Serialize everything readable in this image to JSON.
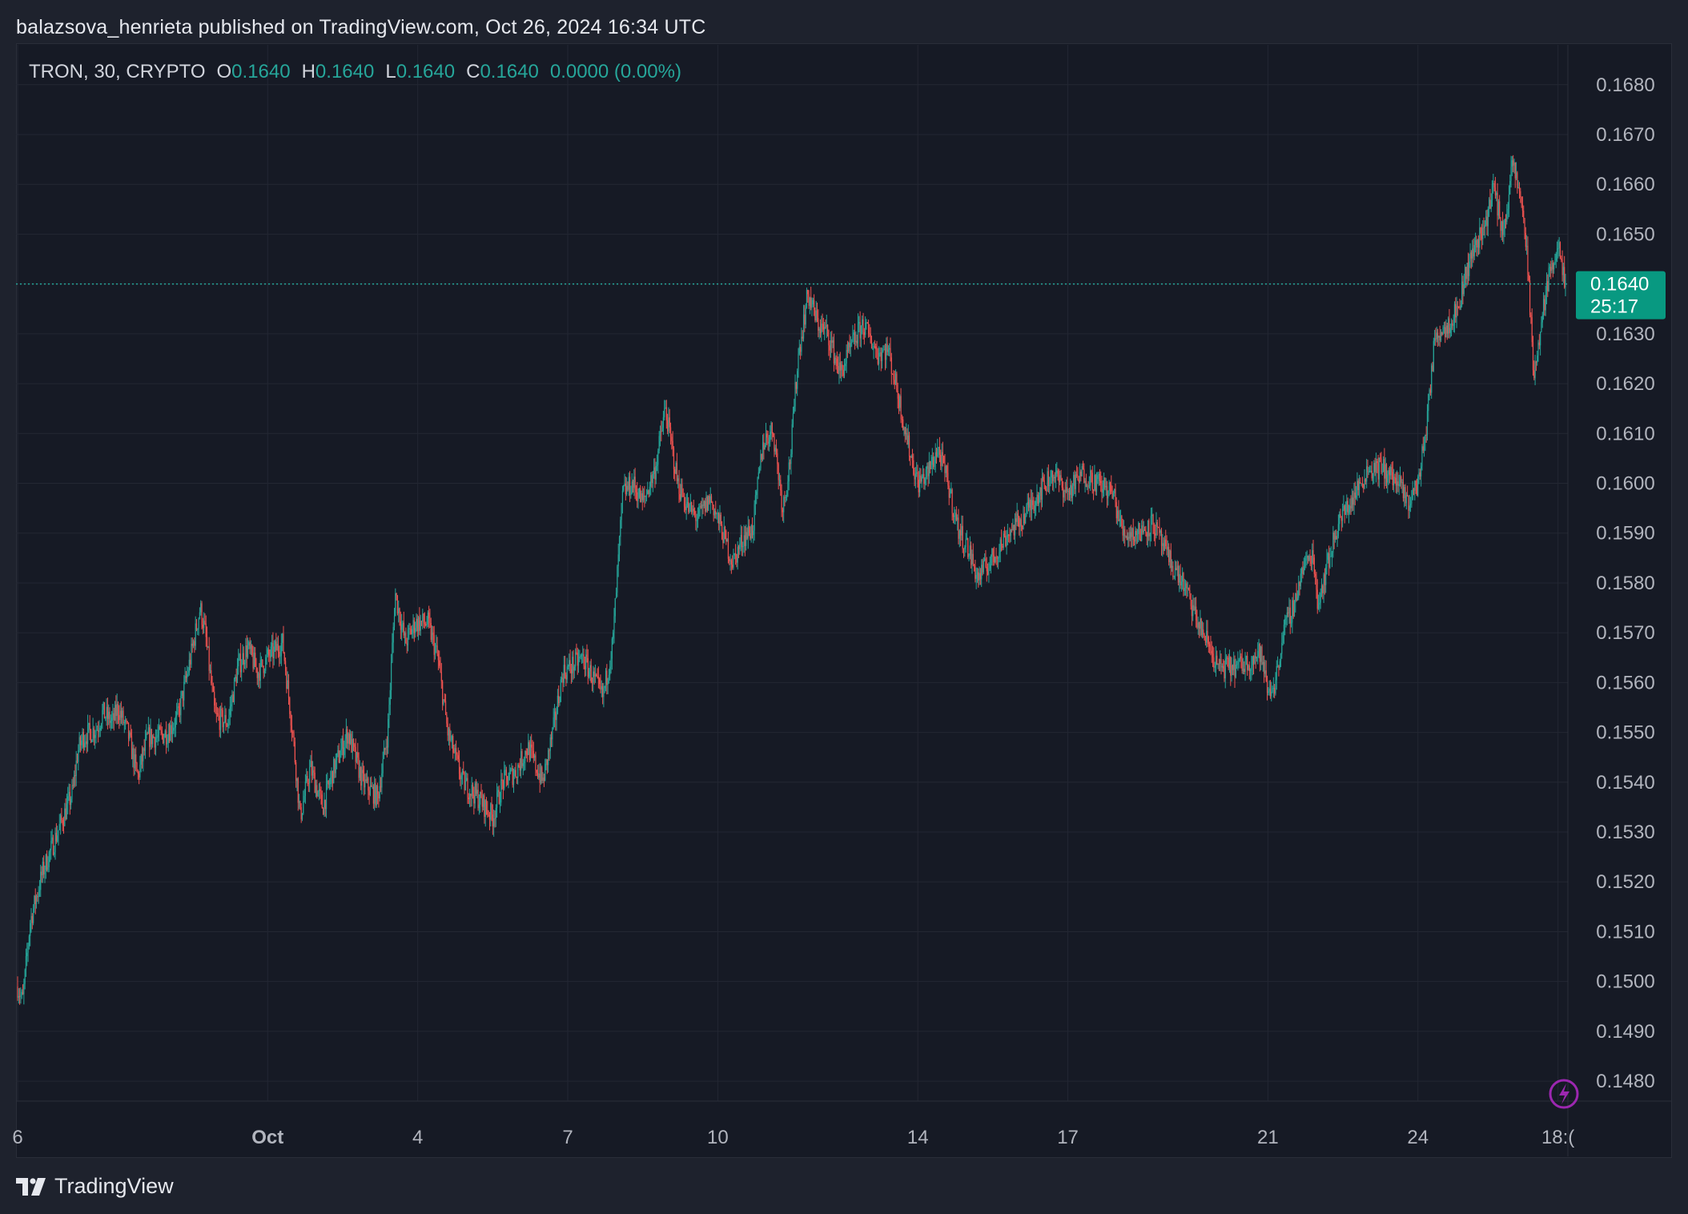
{
  "publish_line": "balazsova_henrieta published on TradingView.com, Oct 26, 2024 16:34 UTC",
  "legend": {
    "symbol": "TRON, 30, CRYPTO",
    "o_label": "O",
    "o_value": "0.1640",
    "h_label": "H",
    "h_value": "0.1640",
    "l_label": "L",
    "l_value": "0.1640",
    "c_label": "C",
    "c_value": "0.1640",
    "change": "0.0000 (0.00%)"
  },
  "price_tag": {
    "price": "0.1640",
    "countdown": "25:17"
  },
  "brand": {
    "name": "TradingView",
    "logo_icon": "tradingview-logo-icon"
  },
  "lightning_icon": "lightning-bolt-icon",
  "colors": {
    "up": "#26a69a",
    "down": "#ef5350",
    "background": "#161a25",
    "page": "#1e222d",
    "grid": "#232733",
    "axis_text": "#b2b5be",
    "indicator": "#9c27b0"
  },
  "chart_data": {
    "type": "candlestick",
    "title": "TRON, 30, CRYPTO",
    "interval": "30 minutes",
    "ylim": [
      0.1476,
      0.1688
    ],
    "y_ticks": [
      "0.1680",
      "0.1670",
      "0.1660",
      "0.1650",
      "0.1640",
      "0.1630",
      "0.1620",
      "0.1610",
      "0.1600",
      "0.1590",
      "0.1580",
      "0.1570",
      "0.1560",
      "0.1550",
      "0.1540",
      "0.1530",
      "0.1520",
      "0.1510",
      "0.1500",
      "0.1490",
      "0.1480"
    ],
    "x_ticks": [
      "6",
      "Oct",
      "4",
      "7",
      "10",
      "14",
      "17",
      "21",
      "24",
      "18:("
    ],
    "x_tick_days": [
      0,
      5,
      8,
      11,
      14,
      18,
      21,
      25,
      28,
      30.8
    ],
    "x_range_days": [
      0,
      30.95
    ],
    "last_price": 0.164,
    "grid": true,
    "close_path": [
      [
        0.0,
        0.1499
      ],
      [
        0.1,
        0.1496
      ],
      [
        0.25,
        0.1512
      ],
      [
        0.5,
        0.1522
      ],
      [
        0.8,
        0.153
      ],
      [
        1.1,
        0.1538
      ],
      [
        1.2,
        0.1546
      ],
      [
        1.3,
        0.1549
      ],
      [
        1.6,
        0.1551
      ],
      [
        1.7,
        0.1554
      ],
      [
        1.9,
        0.1552
      ],
      [
        2.0,
        0.1555
      ],
      [
        2.2,
        0.155
      ],
      [
        2.4,
        0.1541
      ],
      [
        2.6,
        0.1549
      ],
      [
        2.8,
        0.1549
      ],
      [
        3.0,
        0.155
      ],
      [
        3.2,
        0.1553
      ],
      [
        3.4,
        0.1562
      ],
      [
        3.65,
        0.1575
      ],
      [
        3.75,
        0.157
      ],
      [
        3.95,
        0.1553
      ],
      [
        4.2,
        0.1552
      ],
      [
        4.4,
        0.1563
      ],
      [
        4.6,
        0.1567
      ],
      [
        4.8,
        0.1562
      ],
      [
        5.0,
        0.1565
      ],
      [
        5.3,
        0.1568
      ],
      [
        5.5,
        0.155
      ],
      [
        5.65,
        0.1533
      ],
      [
        5.85,
        0.1543
      ],
      [
        6.1,
        0.1535
      ],
      [
        6.3,
        0.1542
      ],
      [
        6.6,
        0.155
      ],
      [
        6.9,
        0.154
      ],
      [
        7.2,
        0.1537
      ],
      [
        7.4,
        0.155
      ],
      [
        7.55,
        0.1578
      ],
      [
        7.75,
        0.1568
      ],
      [
        7.95,
        0.1572
      ],
      [
        8.2,
        0.1572
      ],
      [
        8.4,
        0.1565
      ],
      [
        8.6,
        0.155
      ],
      [
        8.9,
        0.154
      ],
      [
        9.2,
        0.1537
      ],
      [
        9.5,
        0.1533
      ],
      [
        9.7,
        0.154
      ],
      [
        9.95,
        0.1542
      ],
      [
        10.2,
        0.1547
      ],
      [
        10.5,
        0.154
      ],
      [
        10.7,
        0.155
      ],
      [
        10.9,
        0.1562
      ],
      [
        11.3,
        0.1565
      ],
      [
        11.7,
        0.1557
      ],
      [
        11.9,
        0.1568
      ],
      [
        12.1,
        0.1598
      ],
      [
        12.3,
        0.16
      ],
      [
        12.5,
        0.1596
      ],
      [
        12.75,
        0.1603
      ],
      [
        12.95,
        0.1615
      ],
      [
        13.2,
        0.16
      ],
      [
        13.4,
        0.1595
      ],
      [
        13.6,
        0.1593
      ],
      [
        13.85,
        0.1597
      ],
      [
        14.1,
        0.159
      ],
      [
        14.3,
        0.1584
      ],
      [
        14.5,
        0.1589
      ],
      [
        14.7,
        0.1591
      ],
      [
        14.9,
        0.1608
      ],
      [
        15.1,
        0.1611
      ],
      [
        15.3,
        0.1595
      ],
      [
        15.45,
        0.1605
      ],
      [
        15.6,
        0.1625
      ],
      [
        15.8,
        0.1638
      ],
      [
        16.0,
        0.1632
      ],
      [
        16.2,
        0.163
      ],
      [
        16.45,
        0.1622
      ],
      [
        16.7,
        0.1628
      ],
      [
        16.9,
        0.1632
      ],
      [
        17.2,
        0.1626
      ],
      [
        17.4,
        0.1627
      ],
      [
        17.6,
        0.1618
      ],
      [
        17.8,
        0.1608
      ],
      [
        18.0,
        0.16
      ],
      [
        18.2,
        0.1602
      ],
      [
        18.4,
        0.1607
      ],
      [
        18.6,
        0.16
      ],
      [
        18.8,
        0.1591
      ],
      [
        19.0,
        0.1587
      ],
      [
        19.2,
        0.1581
      ],
      [
        19.5,
        0.1585
      ],
      [
        19.8,
        0.159
      ],
      [
        20.1,
        0.1593
      ],
      [
        20.4,
        0.1598
      ],
      [
        20.7,
        0.1602
      ],
      [
        21.0,
        0.1598
      ],
      [
        21.3,
        0.1602
      ],
      [
        21.6,
        0.16
      ],
      [
        21.9,
        0.1598
      ],
      [
        22.1,
        0.159
      ],
      [
        22.4,
        0.159
      ],
      [
        22.7,
        0.1592
      ],
      [
        23.0,
        0.1585
      ],
      [
        23.3,
        0.158
      ],
      [
        23.6,
        0.1572
      ],
      [
        23.8,
        0.1568
      ],
      [
        24.0,
        0.1563
      ],
      [
        24.3,
        0.1563
      ],
      [
        24.6,
        0.1564
      ],
      [
        24.85,
        0.1566
      ],
      [
        25.0,
        0.1558
      ],
      [
        25.15,
        0.156
      ],
      [
        25.3,
        0.157
      ],
      [
        25.5,
        0.1575
      ],
      [
        25.7,
        0.1583
      ],
      [
        25.9,
        0.1586
      ],
      [
        26.0,
        0.1576
      ],
      [
        26.15,
        0.1582
      ],
      [
        26.4,
        0.1592
      ],
      [
        26.7,
        0.1597
      ],
      [
        27.0,
        0.1603
      ],
      [
        27.3,
        0.1603
      ],
      [
        27.6,
        0.16
      ],
      [
        27.8,
        0.1596
      ],
      [
        28.0,
        0.16
      ],
      [
        28.15,
        0.161
      ],
      [
        28.35,
        0.163
      ],
      [
        28.6,
        0.1632
      ],
      [
        28.8,
        0.1635
      ],
      [
        28.95,
        0.1642
      ],
      [
        29.15,
        0.1648
      ],
      [
        29.35,
        0.1652
      ],
      [
        29.5,
        0.166
      ],
      [
        29.7,
        0.165
      ],
      [
        29.9,
        0.1664
      ],
      [
        30.1,
        0.1655
      ],
      [
        30.22,
        0.164
      ],
      [
        30.3,
        0.1622
      ],
      [
        30.42,
        0.1628
      ],
      [
        30.55,
        0.1638
      ],
      [
        30.7,
        0.1645
      ],
      [
        30.8,
        0.1648
      ],
      [
        30.88,
        0.1642
      ],
      [
        30.95,
        0.164
      ]
    ]
  }
}
